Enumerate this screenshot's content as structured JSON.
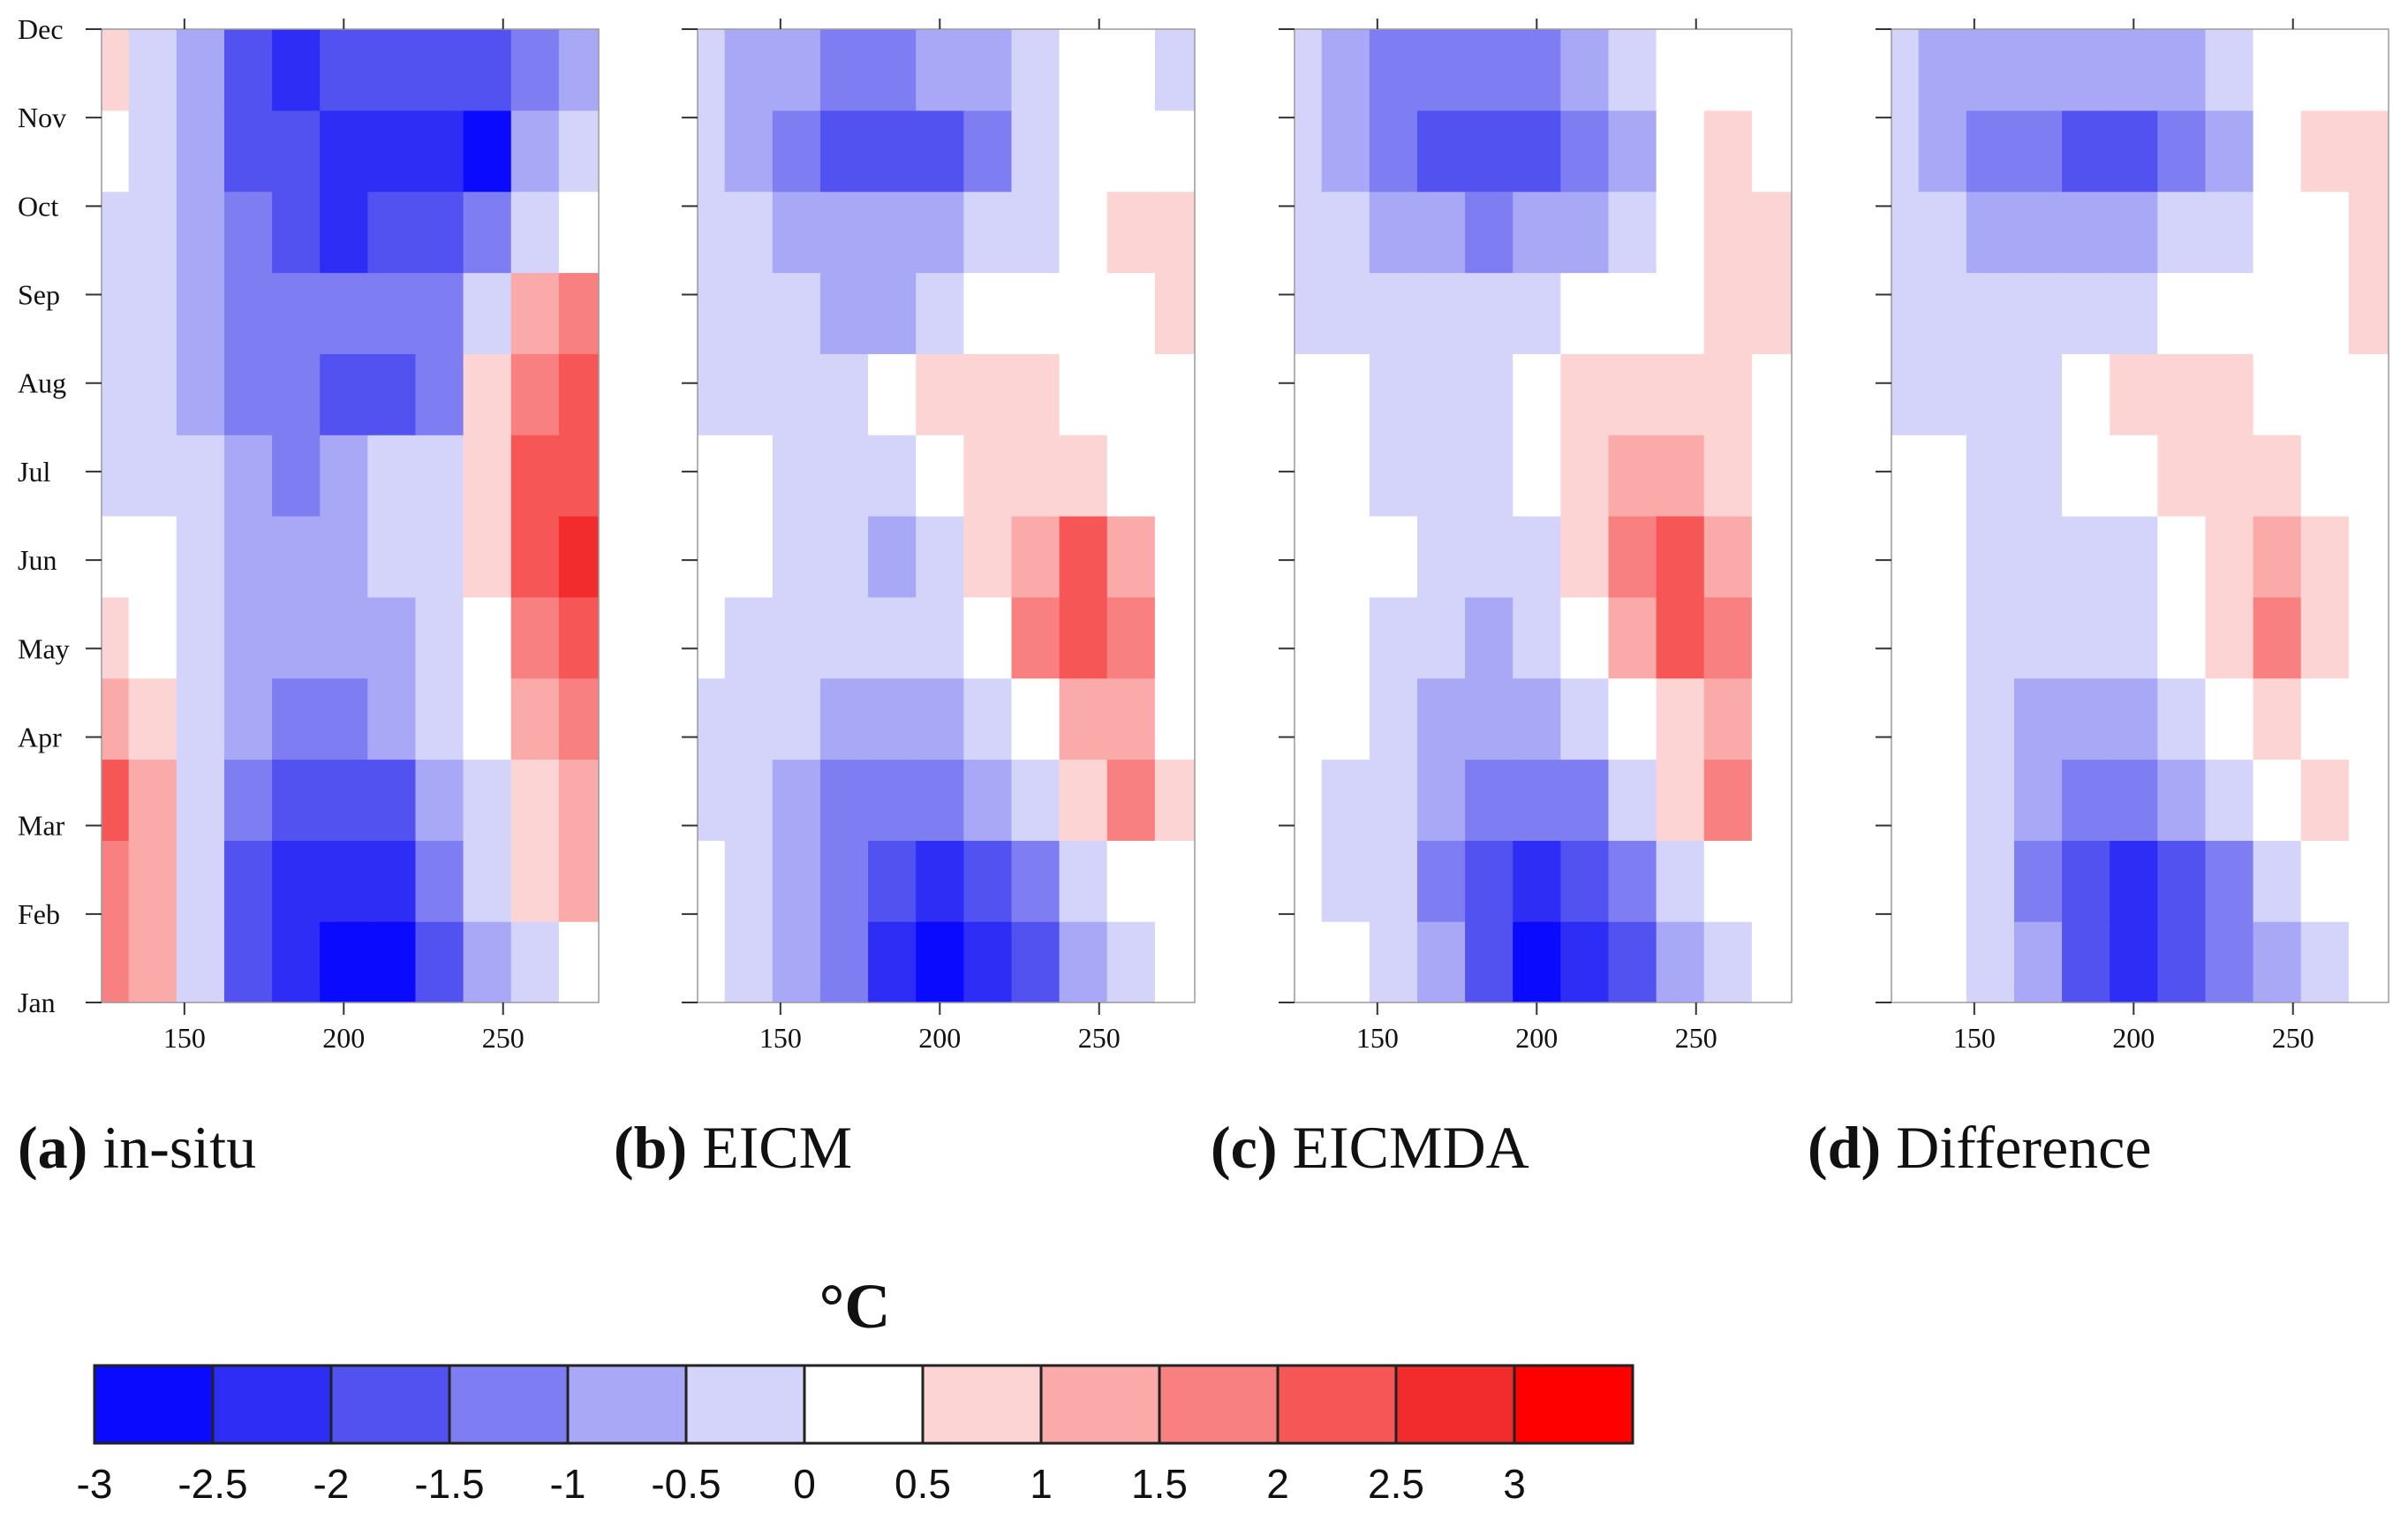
{
  "chart_data": [
    {
      "type": "heatmap",
      "id": "a",
      "caption_letter": "(a)",
      "caption_text": "in-situ",
      "x_ticks": [
        "150",
        "200",
        "250"
      ],
      "x_tick_values": [
        150,
        200,
        250
      ],
      "xlim": [
        124,
        280
      ],
      "y_ticks": [
        "Jan",
        "Feb",
        "Mar",
        "Apr",
        "May",
        "Jun",
        "Jul",
        "Aug",
        "Sep",
        "Oct",
        "Nov",
        "Dec"
      ],
      "x_samples": [
        125,
        140,
        155,
        170,
        185,
        200,
        215,
        230,
        245,
        260,
        275
      ],
      "values": [
        [
          1.5,
          1.0,
          -0.5,
          -2.0,
          -2.5,
          -3.0,
          -2.8,
          -2.0,
          -1.0,
          -0.5,
          0.0
        ],
        [
          1.8,
          1.2,
          -0.3,
          -1.8,
          -2.2,
          -2.5,
          -2.2,
          -1.5,
          -0.5,
          0.5,
          1.0
        ],
        [
          2.0,
          1.0,
          -0.3,
          -1.5,
          -1.8,
          -2.0,
          -1.8,
          -1.0,
          -0.2,
          0.5,
          1.2
        ],
        [
          1.2,
          0.5,
          -0.5,
          -1.0,
          -1.2,
          -1.2,
          -1.0,
          -0.5,
          0.0,
          1.0,
          1.8
        ],
        [
          0.5,
          0.2,
          -0.3,
          -0.8,
          -1.0,
          -1.0,
          -0.8,
          -0.5,
          0.3,
          1.5,
          2.0
        ],
        [
          0.0,
          0.0,
          -0.5,
          -1.0,
          -1.0,
          -0.8,
          -0.5,
          -0.2,
          0.5,
          2.0,
          2.5
        ],
        [
          -0.3,
          -0.3,
          -0.5,
          -1.0,
          -1.2,
          -1.0,
          -0.5,
          -0.2,
          0.8,
          2.0,
          2.2
        ],
        [
          -0.5,
          -0.5,
          -0.8,
          -1.3,
          -1.5,
          -1.6,
          -1.8,
          -1.5,
          0.5,
          1.5,
          2.0
        ],
        [
          -0.3,
          -0.3,
          -0.8,
          -1.5,
          -1.5,
          -1.5,
          -1.5,
          -1.2,
          -0.3,
          1.0,
          1.5
        ],
        [
          -0.2,
          -0.3,
          -0.8,
          -1.5,
          -2.0,
          -2.2,
          -2.0,
          -1.8,
          -1.5,
          -0.5,
          0.0
        ],
        [
          0.0,
          -0.3,
          -1.0,
          -1.8,
          -2.0,
          -2.2,
          -2.2,
          -2.4,
          -2.8,
          -1.0,
          -0.5
        ],
        [
          0.5,
          -0.3,
          -1.0,
          -1.8,
          -2.2,
          -2.0,
          -1.8,
          -1.8,
          -1.8,
          -1.5,
          -1.0
        ]
      ]
    },
    {
      "type": "heatmap",
      "id": "b",
      "caption_letter": "(b)",
      "caption_text": "EICM",
      "x_ticks": [
        "150",
        "200",
        "250"
      ],
      "x_tick_values": [
        150,
        200,
        250
      ],
      "xlim": [
        124,
        280
      ],
      "y_ticks": [
        "Jan",
        "Feb",
        "Mar",
        "Apr",
        "May",
        "Jun",
        "Jul",
        "Aug",
        "Sep",
        "Oct",
        "Nov",
        "Dec"
      ],
      "x_samples": [
        125,
        140,
        155,
        170,
        185,
        200,
        215,
        230,
        245,
        260,
        275
      ],
      "values": [
        [
          0.0,
          -0.2,
          -0.8,
          -1.5,
          -2.2,
          -2.6,
          -2.4,
          -1.8,
          -1.0,
          -0.5,
          0.0
        ],
        [
          0.0,
          -0.3,
          -1.0,
          -1.5,
          -2.0,
          -2.2,
          -1.8,
          -1.2,
          -0.5,
          0.2,
          0.0
        ],
        [
          -0.2,
          -0.3,
          -0.8,
          -1.2,
          -1.5,
          -1.5,
          -1.0,
          -0.3,
          0.5,
          1.8,
          0.5
        ],
        [
          -0.2,
          -0.3,
          -0.5,
          -0.8,
          -1.0,
          -0.8,
          -0.3,
          0.3,
          1.0,
          1.0,
          0.0
        ],
        [
          0.0,
          -0.2,
          -0.3,
          -0.5,
          -0.5,
          -0.2,
          0.3,
          1.5,
          2.3,
          1.5,
          0.0
        ],
        [
          0.0,
          0.0,
          -0.2,
          -0.5,
          -0.8,
          -0.3,
          0.5,
          1.3,
          2.0,
          1.0,
          0.0
        ],
        [
          0.0,
          0.0,
          -0.3,
          -0.5,
          -0.3,
          0.2,
          0.8,
          0.8,
          0.5,
          0.2,
          0.0
        ],
        [
          -0.2,
          -0.2,
          -0.3,
          -0.3,
          0.0,
          0.5,
          0.7,
          0.6,
          0.3,
          0.0,
          0.0
        ],
        [
          -0.2,
          -0.3,
          -0.5,
          -0.8,
          -0.8,
          -0.3,
          0.0,
          0.2,
          0.0,
          0.2,
          0.5
        ],
        [
          -0.3,
          -0.5,
          -0.8,
          -1.0,
          -1.0,
          -0.8,
          -0.5,
          -0.3,
          0.2,
          0.5,
          0.5
        ],
        [
          -0.3,
          -1.0,
          -1.5,
          -1.8,
          -1.8,
          -1.6,
          -1.2,
          -0.5,
          0.0,
          0.4,
          0.3
        ],
        [
          -0.5,
          -0.8,
          -1.0,
          -1.2,
          -1.2,
          -1.0,
          -0.8,
          -0.5,
          0.0,
          0.0,
          -0.2
        ]
      ]
    },
    {
      "type": "heatmap",
      "id": "c",
      "caption_letter": "(c)",
      "caption_text": "EICMDA",
      "x_ticks": [
        "150",
        "200",
        "250"
      ],
      "x_tick_values": [
        150,
        200,
        250
      ],
      "xlim": [
        124,
        280
      ],
      "y_ticks": [
        "Jan",
        "Feb",
        "Mar",
        "Apr",
        "May",
        "Jun",
        "Jul",
        "Aug",
        "Sep",
        "Oct",
        "Nov",
        "Dec"
      ],
      "x_samples": [
        125,
        140,
        155,
        170,
        185,
        200,
        215,
        230,
        245,
        260,
        275
      ],
      "values": [
        [
          0.0,
          0.0,
          -0.3,
          -1.0,
          -2.0,
          -2.6,
          -2.4,
          -1.8,
          -1.0,
          -0.3,
          0.0
        ],
        [
          0.0,
          -0.2,
          -0.5,
          -1.2,
          -2.0,
          -2.3,
          -2.0,
          -1.3,
          -0.5,
          0.2,
          0.0
        ],
        [
          0.0,
          -0.2,
          -0.5,
          -1.0,
          -1.5,
          -1.5,
          -1.2,
          -0.5,
          0.5,
          1.8,
          0.0
        ],
        [
          0.0,
          0.0,
          -0.3,
          -0.8,
          -1.0,
          -1.0,
          -0.5,
          0.0,
          0.8,
          1.0,
          0.0
        ],
        [
          0.0,
          0.0,
          -0.2,
          -0.5,
          -0.8,
          -0.5,
          0.0,
          1.0,
          2.0,
          1.5,
          0.0
        ],
        [
          0.0,
          0.0,
          0.0,
          -0.3,
          -0.5,
          -0.3,
          0.5,
          1.5,
          2.3,
          1.0,
          0.0
        ],
        [
          0.0,
          0.0,
          -0.2,
          -0.3,
          -0.3,
          0.0,
          0.5,
          1.0,
          1.0,
          0.5,
          0.3
        ],
        [
          0.0,
          0.0,
          -0.2,
          -0.3,
          -0.2,
          0.2,
          0.7,
          0.7,
          0.5,
          0.5,
          0.3
        ],
        [
          -0.3,
          -0.3,
          -0.5,
          -0.5,
          -0.5,
          -0.2,
          0.0,
          0.3,
          0.3,
          0.5,
          0.5
        ],
        [
          -0.3,
          -0.5,
          -0.8,
          -1.0,
          -1.2,
          -1.0,
          -0.8,
          -0.5,
          0.0,
          0.5,
          0.5
        ],
        [
          -0.5,
          -1.0,
          -1.5,
          -1.8,
          -2.0,
          -1.8,
          -1.5,
          -0.8,
          0.0,
          0.5,
          0.3
        ],
        [
          -0.5,
          -0.8,
          -1.2,
          -1.2,
          -1.2,
          -1.2,
          -1.0,
          -0.5,
          0.0,
          0.3,
          0.0
        ]
      ]
    },
    {
      "type": "heatmap",
      "id": "d",
      "caption_letter": "(d)",
      "caption_text": "Difference",
      "x_ticks": [
        "150",
        "200",
        "250"
      ],
      "x_tick_values": [
        150,
        200,
        250
      ],
      "xlim": [
        124,
        280
      ],
      "y_ticks": [
        "Jan",
        "Feb",
        "Mar",
        "Apr",
        "May",
        "Jun",
        "Jul",
        "Aug",
        "Sep",
        "Oct",
        "Nov",
        "Dec"
      ],
      "x_samples": [
        125,
        140,
        155,
        170,
        185,
        200,
        215,
        230,
        245,
        260,
        275
      ],
      "values": [
        [
          0.2,
          0.2,
          -0.3,
          -1.0,
          -1.8,
          -2.2,
          -2.0,
          -1.5,
          -0.8,
          -0.3,
          0.0
        ],
        [
          0.3,
          0.2,
          -0.5,
          -1.3,
          -2.0,
          -2.3,
          -1.8,
          -1.2,
          -0.5,
          0.0,
          0.0
        ],
        [
          0.2,
          0.0,
          -0.3,
          -1.0,
          -1.5,
          -1.5,
          -1.0,
          -0.5,
          0.0,
          0.8,
          0.0
        ],
        [
          0.0,
          0.0,
          -0.3,
          -0.8,
          -1.0,
          -0.8,
          -0.5,
          0.0,
          0.5,
          0.0,
          0.0
        ],
        [
          0.0,
          0.0,
          -0.2,
          -0.5,
          -0.5,
          -0.3,
          0.2,
          0.8,
          1.6,
          0.8,
          0.0
        ],
        [
          0.3,
          0.0,
          -0.2,
          -0.3,
          -0.5,
          -0.2,
          0.3,
          0.8,
          1.3,
          0.5,
          0.0
        ],
        [
          0.0,
          0.0,
          -0.2,
          -0.2,
          0.0,
          0.3,
          0.6,
          0.8,
          0.8,
          0.3,
          0.3
        ],
        [
          -0.2,
          -0.2,
          -0.2,
          -0.2,
          0.0,
          0.5,
          0.8,
          0.5,
          0.3,
          0.3,
          0.3
        ],
        [
          -0.2,
          -0.3,
          -0.5,
          -0.5,
          -0.5,
          -0.3,
          0.0,
          0.2,
          0.2,
          0.3,
          0.5
        ],
        [
          -0.3,
          -0.5,
          -0.8,
          -1.0,
          -1.0,
          -0.8,
          -0.5,
          -0.3,
          0.0,
          0.3,
          0.5
        ],
        [
          -0.3,
          -0.8,
          -1.3,
          -1.5,
          -1.6,
          -1.6,
          -1.3,
          -0.8,
          0.0,
          0.5,
          0.5
        ],
        [
          -0.5,
          -0.8,
          -1.0,
          -1.0,
          -1.0,
          -0.8,
          -0.8,
          -0.5,
          0.0,
          0.0,
          0.0
        ]
      ]
    }
  ],
  "colorbar": {
    "unit": "°C",
    "labels": [
      "-3",
      "-2.5",
      "-2",
      "-1.5",
      "-1",
      "-0.5",
      "0",
      "0.5",
      "1",
      "1.5",
      "2",
      "2.5",
      "3"
    ],
    "boundaries": [
      -3,
      -2.5,
      -2,
      -1.5,
      -1,
      -0.5,
      0,
      0.5,
      1,
      1.5,
      2,
      2.5,
      3
    ],
    "colors": [
      "#0a0aff",
      "#2d2df5",
      "#5252f0",
      "#7e7ef2",
      "#a8a8f7",
      "#d4d4fb",
      "#ffffff",
      "#fdd4d4",
      "#fbaaaa",
      "#f88080",
      "#f65656",
      "#f22c2c",
      "#ff0000"
    ]
  }
}
